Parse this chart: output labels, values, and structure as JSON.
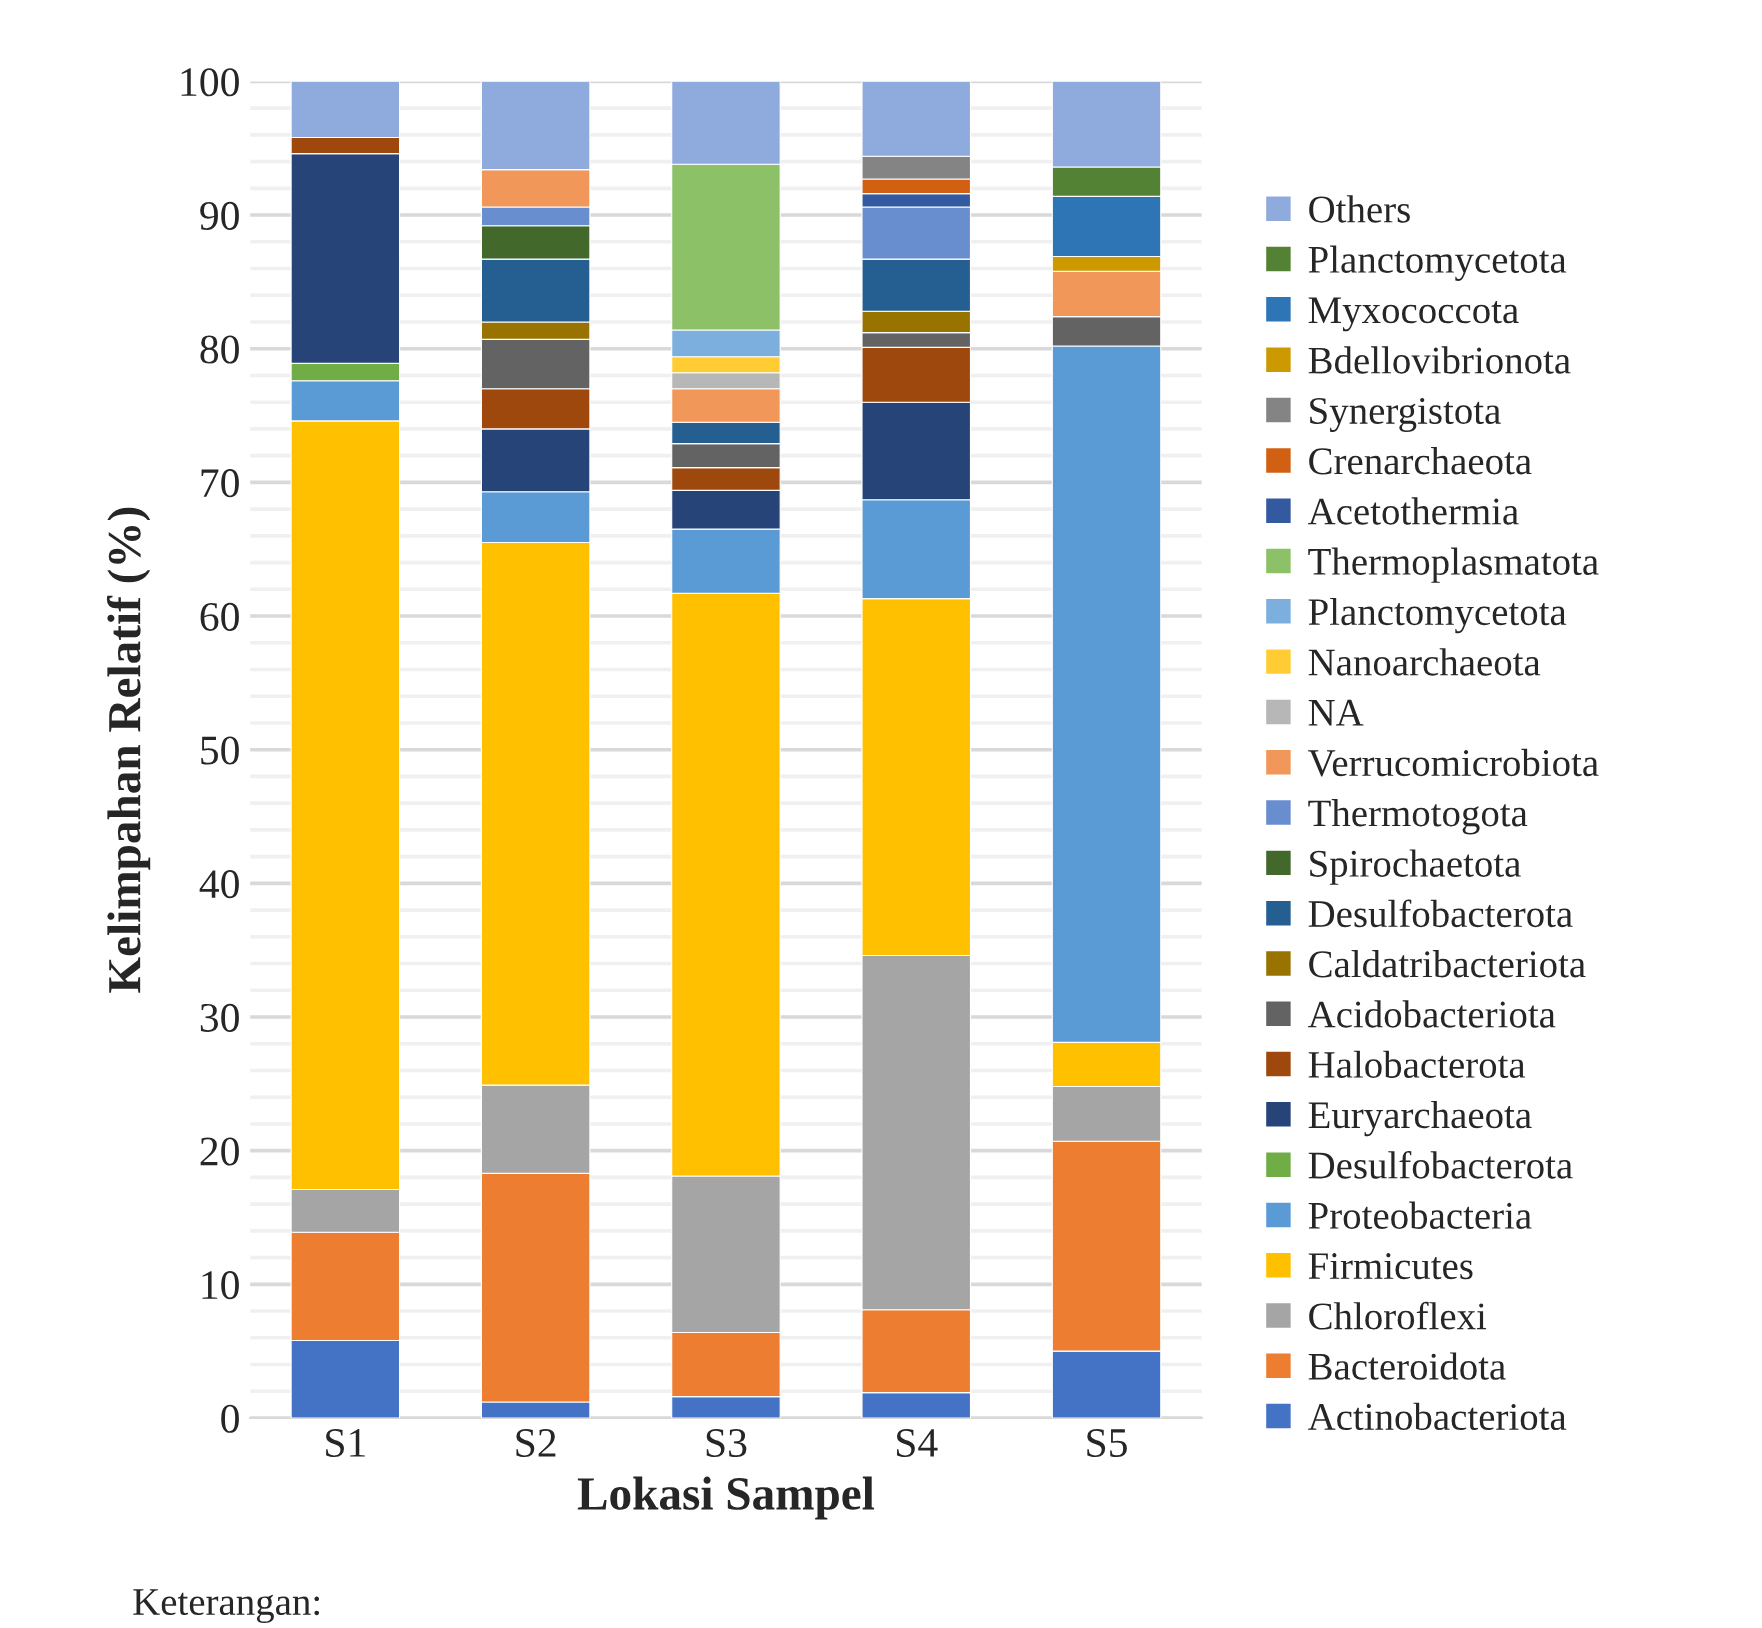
{
  "chart_data": {
    "type": "bar",
    "stacked": true,
    "xlabel": "Lokasi Sampel",
    "ylabel": "Kelimpahan Relatif (%)",
    "categories": [
      "S1",
      "S2",
      "S3",
      "S4",
      "S5"
    ],
    "ylim": [
      0,
      100
    ],
    "yticks": [
      0,
      {
        "value": 2,
        "label": null
      },
      {
        "value": 4,
        "label": null
      },
      {
        "value": 6,
        "label": null
      },
      {
        "value": 8,
        "label": null
      },
      10,
      {
        "value": 12,
        "label": null
      },
      {
        "value": 14,
        "label": null
      },
      {
        "value": 16,
        "label": null
      },
      {
        "value": 18,
        "label": null
      },
      20,
      {
        "value": 22,
        "label": null
      },
      {
        "value": 24,
        "label": null
      },
      {
        "value": 26,
        "label": null
      },
      {
        "value": 28,
        "label": null
      },
      30,
      {
        "value": 32,
        "label": null
      },
      {
        "value": 34,
        "label": null
      },
      {
        "value": 36,
        "label": null
      },
      {
        "value": 38,
        "label": null
      },
      40,
      {
        "value": 42,
        "label": null
      },
      {
        "value": 44,
        "label": null
      },
      {
        "value": 46,
        "label": null
      },
      {
        "value": 48,
        "label": null
      },
      50,
      {
        "value": 52,
        "label": null
      },
      {
        "value": 54,
        "label": null
      },
      {
        "value": 56,
        "label": null
      },
      {
        "value": 58,
        "label": null
      },
      60,
      {
        "value": 62,
        "label": null
      },
      {
        "value": 64,
        "label": null
      },
      {
        "value": 66,
        "label": null
      },
      {
        "value": 68,
        "label": null
      },
      70,
      {
        "value": 72,
        "label": null
      },
      {
        "value": 74,
        "label": null
      },
      {
        "value": 76,
        "label": null
      },
      {
        "value": 78,
        "label": null
      },
      80,
      {
        "value": 82,
        "label": null
      },
      {
        "value": 84,
        "label": null
      },
      {
        "value": 86,
        "label": null
      },
      {
        "value": 88,
        "label": null
      },
      90,
      {
        "value": 92,
        "label": null
      },
      {
        "value": 94,
        "label": null
      },
      {
        "value": 96,
        "label": null
      },
      {
        "value": 98,
        "label": null
      },
      100
    ],
    "grid": "y",
    "legend": "right",
    "annotations": [
      "Keterangan:"
    ],
    "series": [
      {
        "name": "Actinobacteriota",
        "color": "#4472c4",
        "values": [
          5.8,
          1.2,
          1.6,
          1.9,
          5.0
        ]
      },
      {
        "name": "Bacteroidota",
        "color": "#ed7d31",
        "values": [
          8.1,
          17.1,
          4.8,
          6.2,
          15.7
        ]
      },
      {
        "name": "Chloroflexi",
        "color": "#a5a5a5",
        "values": [
          3.2,
          6.6,
          11.7,
          26.5,
          4.1
        ]
      },
      {
        "name": "Firmicutes",
        "color": "#ffc000",
        "values": [
          57.5,
          40.6,
          43.6,
          26.7,
          3.3
        ]
      },
      {
        "name": "Proteobacteria",
        "color": "#5b9bd5",
        "values": [
          3.0,
          3.8,
          4.8,
          7.4,
          52.1
        ]
      },
      {
        "name": "Desulfobacterota",
        "color": "#70ad47",
        "values": [
          1.3,
          null,
          null,
          null,
          null
        ]
      },
      {
        "name": "Euryarchaeota",
        "color": "#264478",
        "values": [
          15.7,
          4.7,
          2.9,
          7.3,
          null
        ]
      },
      {
        "name": "Halobacterota",
        "color": "#9e480e",
        "values": [
          1.2,
          3.0,
          1.7,
          4.1,
          null
        ]
      },
      {
        "name": "Acidobacteriota",
        "color": "#636363",
        "values": [
          null,
          3.7,
          1.8,
          1.1,
          2.2
        ]
      },
      {
        "name": "Caldatribacteriota",
        "color": "#997300",
        "values": [
          null,
          1.3,
          null,
          1.6,
          null
        ]
      },
      {
        "name": "Desulfobacterota",
        "color": "#255e91",
        "values": [
          null,
          4.7,
          1.6,
          3.9,
          null
        ]
      },
      {
        "name": "Spirochaetota",
        "color": "#43682b",
        "values": [
          null,
          2.5,
          null,
          null,
          null
        ]
      },
      {
        "name": "Thermotogota",
        "color": "#698ed0",
        "values": [
          null,
          1.4,
          null,
          3.9,
          null
        ]
      },
      {
        "name": "Verrucomicrobiota",
        "color": "#f1975a",
        "values": [
          null,
          2.8,
          2.5,
          null,
          3.4
        ]
      },
      {
        "name": "NA",
        "color": "#b7b7b7",
        "values": [
          null,
          null,
          1.2,
          null,
          null
        ]
      },
      {
        "name": "Nanoarchaeota",
        "color": "#ffcd33",
        "values": [
          null,
          null,
          1.2,
          null,
          null
        ]
      },
      {
        "name": "Planctomycetota",
        "color": "#7cafdd",
        "values": [
          null,
          null,
          2.0,
          null,
          null
        ]
      },
      {
        "name": "Thermoplasmatota",
        "color": "#8cc168",
        "values": [
          null,
          null,
          12.4,
          null,
          null
        ]
      },
      {
        "name": "Acetothermia",
        "color": "#335aa1",
        "values": [
          null,
          null,
          null,
          1.0,
          null
        ]
      },
      {
        "name": "Crenarchaeota",
        "color": "#d26012",
        "values": [
          null,
          null,
          null,
          1.1,
          null
        ]
      },
      {
        "name": "Synergistota",
        "color": "#848484",
        "values": [
          null,
          null,
          null,
          1.7,
          null
        ]
      },
      {
        "name": "Bdellovibrionota",
        "color": "#cc9a00",
        "values": [
          null,
          null,
          null,
          null,
          1.1
        ]
      },
      {
        "name": "Myxococcota",
        "color": "#2e75b6",
        "values": [
          null,
          null,
          null,
          null,
          4.5
        ]
      },
      {
        "name": "Planctomycetota",
        "color": "#548235",
        "values": [
          null,
          null,
          null,
          null,
          2.2
        ]
      },
      {
        "name": "Others",
        "color": "#8faadc",
        "values": [
          4.2,
          6.6,
          6.2,
          5.6,
          6.4
        ]
      }
    ]
  }
}
